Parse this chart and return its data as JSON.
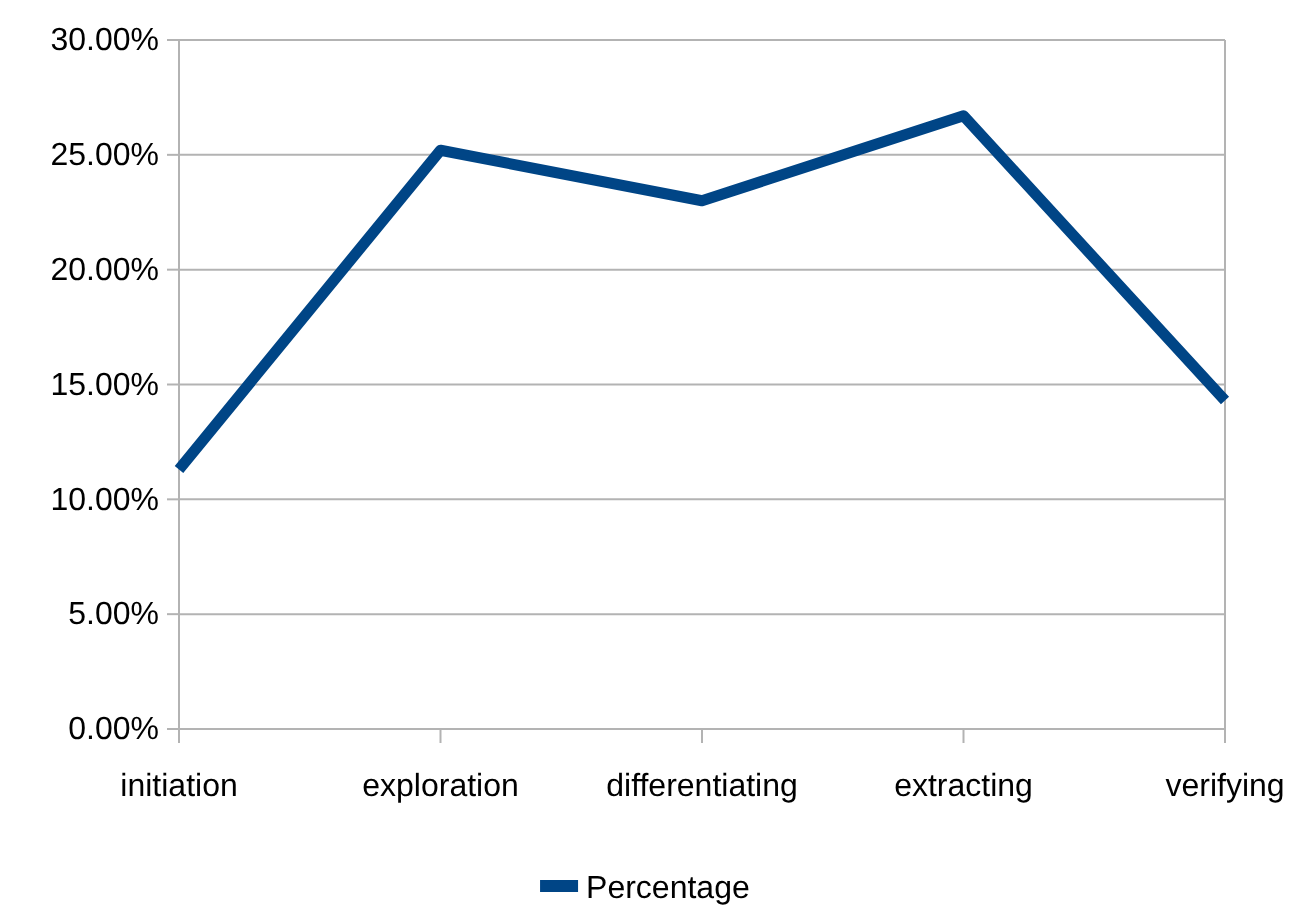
{
  "chart_data": {
    "type": "line",
    "categories": [
      "initiation",
      "exploration",
      "differentiating",
      "extracting",
      "verifying"
    ],
    "series": [
      {
        "name": "Percentage",
        "color": "#004586",
        "values": [
          11.3,
          25.2,
          23.0,
          26.7,
          14.3
        ]
      }
    ],
    "ylim": [
      0,
      30
    ],
    "yticks": [
      {
        "value": 0,
        "label": "0.00%"
      },
      {
        "value": 5,
        "label": "5.00%"
      },
      {
        "value": 10,
        "label": "10.00%"
      },
      {
        "value": 15,
        "label": "15.00%"
      },
      {
        "value": 20,
        "label": "20.00%"
      },
      {
        "value": 25,
        "label": "25.00%"
      },
      {
        "value": 30,
        "label": "30.00%"
      }
    ],
    "grid": "y",
    "legend": "bottom",
    "marker": "none",
    "line_style": "solid"
  }
}
